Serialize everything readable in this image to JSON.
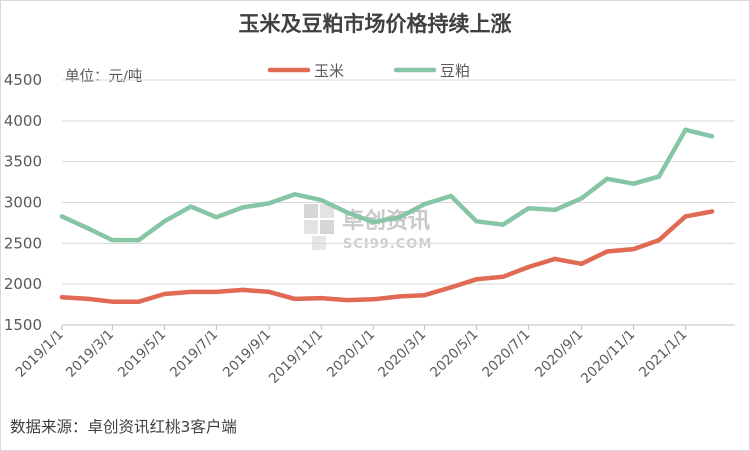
{
  "chart_data": {
    "type": "line",
    "title": "玉米及豆粕市场价格持续上涨",
    "unit_label": "单位：元/吨",
    "source": "数据来源：卓创资讯红桃3客户端",
    "watermark": {
      "cn": "卓创资讯",
      "en": "SCI99.COM"
    },
    "legend_placement": "top-center",
    "grid": true,
    "ylim": [
      1500,
      4500
    ],
    "y_ticks": [
      1500,
      2000,
      2500,
      3000,
      3500,
      4000,
      4500
    ],
    "x_tick_labels": [
      "2019/1/1",
      "2019/3/1",
      "2019/5/1",
      "2019/7/1",
      "2019/9/1",
      "2019/11/1",
      "2020/1/1",
      "2020/3/1",
      "2020/5/1",
      "2020/7/1",
      "2020/9/1",
      "2020/11/1",
      "2021/1/1"
    ],
    "xlim": [
      "2019/1/1",
      "2021/2/28"
    ],
    "series": [
      {
        "name": "玉米",
        "color": "#e06a53",
        "points": [
          [
            "2019/1/1",
            1840
          ],
          [
            "2019/2/1",
            1820
          ],
          [
            "2019/3/1",
            1785
          ],
          [
            "2019/4/1",
            1785
          ],
          [
            "2019/5/1",
            1880
          ],
          [
            "2019/6/1",
            1905
          ],
          [
            "2019/7/1",
            1905
          ],
          [
            "2019/8/1",
            1930
          ],
          [
            "2019/9/1",
            1905
          ],
          [
            "2019/10/1",
            1820
          ],
          [
            "2019/11/1",
            1830
          ],
          [
            "2019/12/1",
            1805
          ],
          [
            "2020/1/1",
            1815
          ],
          [
            "2020/2/1",
            1850
          ],
          [
            "2020/3/1",
            1865
          ],
          [
            "2020/4/1",
            1960
          ],
          [
            "2020/5/1",
            2060
          ],
          [
            "2020/6/1",
            2090
          ],
          [
            "2020/7/1",
            2210
          ],
          [
            "2020/8/1",
            2310
          ],
          [
            "2020/9/1",
            2250
          ],
          [
            "2020/10/1",
            2400
          ],
          [
            "2020/11/1",
            2430
          ],
          [
            "2020/12/1",
            2540
          ],
          [
            "2021/1/1",
            2830
          ],
          [
            "2021/2/1",
            2890
          ]
        ]
      },
      {
        "name": "豆粕",
        "color": "#86c5a5",
        "points": [
          [
            "2019/1/1",
            2830
          ],
          [
            "2019/2/1",
            2680
          ],
          [
            "2019/3/1",
            2540
          ],
          [
            "2019/4/1",
            2540
          ],
          [
            "2019/5/1",
            2770
          ],
          [
            "2019/6/1",
            2950
          ],
          [
            "2019/7/1",
            2820
          ],
          [
            "2019/8/1",
            2940
          ],
          [
            "2019/9/1",
            2990
          ],
          [
            "2019/10/1",
            3100
          ],
          [
            "2019/11/1",
            3030
          ],
          [
            "2019/12/1",
            2880
          ],
          [
            "2020/1/1",
            2760
          ],
          [
            "2020/2/1",
            2820
          ],
          [
            "2020/3/1",
            2980
          ],
          [
            "2020/4/1",
            3080
          ],
          [
            "2020/5/1",
            2770
          ],
          [
            "2020/6/1",
            2730
          ],
          [
            "2020/7/1",
            2930
          ],
          [
            "2020/8/1",
            2910
          ],
          [
            "2020/9/1",
            3050
          ],
          [
            "2020/10/1",
            3290
          ],
          [
            "2020/11/1",
            3230
          ],
          [
            "2020/12/1",
            3320
          ],
          [
            "2021/1/1",
            3890
          ],
          [
            "2021/2/1",
            3810
          ]
        ]
      }
    ]
  }
}
